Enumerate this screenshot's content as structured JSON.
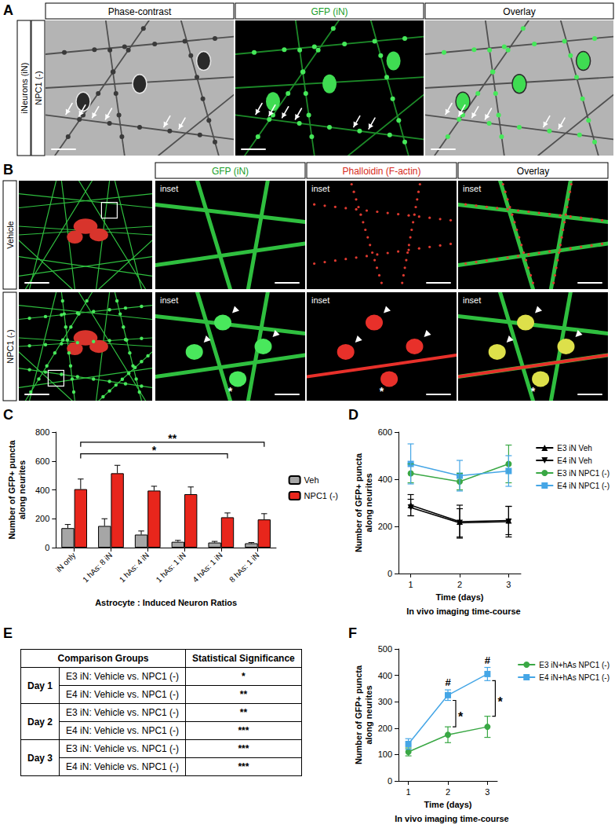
{
  "figure": {
    "panel_A": {
      "letter": "A",
      "columns": [
        {
          "text": "Phase-contrast",
          "color": "#000000"
        },
        {
          "text": "GFP (iN)",
          "color": "#1a9e2a"
        },
        {
          "text": "Overlay",
          "color": "#000000"
        }
      ],
      "row_labels": [
        "iNeurons (iN)",
        "NPC1 (-)"
      ]
    },
    "panel_B": {
      "letter": "B",
      "columns": [
        {
          "text": "GFP (iN)",
          "color": "#1a9e2a"
        },
        {
          "text": "Phalloidin (F-actin)",
          "color": "#d62a20"
        },
        {
          "text": "Overlay",
          "color": "#000000"
        }
      ],
      "rows": [
        "Vehicle",
        "NPC1 (-)"
      ],
      "inset_label": "inset",
      "inset_mark": "*"
    },
    "panel_E": {
      "letter": "E",
      "header": [
        "Comparison Groups",
        "Statistical Significance"
      ],
      "groups": [
        {
          "label": "Day 1",
          "rows": [
            [
              "E3 iN: Vehicle vs. NPC1 (-)",
              "*"
            ],
            [
              "E4 iN: Vehicle vs. NPC1 (-)",
              "**"
            ]
          ]
        },
        {
          "label": "Day 2",
          "rows": [
            [
              "E3 iN: Vehicle vs. NPC1 (-)",
              "**"
            ],
            [
              "E4 iN: Vehicle vs. NPC1 (-)",
              "***"
            ]
          ]
        },
        {
          "label": "Day 3",
          "rows": [
            [
              "E3 iN: Vehicle vs. NPC1 (-)",
              "***"
            ],
            [
              "E4 iN: Vehicle vs. NPC1 (-)",
              "***"
            ]
          ]
        }
      ]
    }
  },
  "chart_data": [
    {
      "panel": "C",
      "type": "bar",
      "xlabel": "Astrocyte : Induced Neuron Ratios",
      "ylabel": "Number of GFP+ puncta along neurites",
      "categories": [
        "iN only",
        "1 hAs: 8 iN",
        "1 hAs: 4 iN",
        "1 hAs: 1 iN",
        "4 hAs: 1 iN",
        "8 hAs: 1 iN"
      ],
      "series": [
        {
          "name": "Veh",
          "color": "#a6a6a6",
          "values": [
            135,
            150,
            90,
            40,
            35,
            30
          ],
          "errors": [
            25,
            50,
            25,
            10,
            8,
            5
          ]
        },
        {
          "name": "NPC1 (-)",
          "color": "#e8261c",
          "values": [
            405,
            515,
            395,
            370,
            210,
            195
          ],
          "errors": [
            70,
            55,
            30,
            50,
            30,
            40
          ]
        }
      ],
      "ylim": [
        0,
        800
      ],
      "yticks": [
        0,
        200,
        400,
        600,
        800
      ],
      "grid": false,
      "legend": "right",
      "annotations": [
        {
          "from": "iN only",
          "to": "4 hAs: 1 iN",
          "label": "*"
        },
        {
          "from": "iN only",
          "to": "8 hAs: 1 iN",
          "label": "**"
        }
      ]
    },
    {
      "panel": "D",
      "type": "line",
      "xlabel": "Time (days)",
      "caption": "In vivo imaging time-course",
      "ylabel": "Number of GFP+ puncta along neurites",
      "x": [
        1,
        2,
        3
      ],
      "series": [
        {
          "name": "E3 iN Veh",
          "color": "#000000",
          "marker": "triangle",
          "values": [
            290,
            220,
            225
          ],
          "errors": [
            45,
            70,
            60
          ]
        },
        {
          "name": "E4 iN Veh",
          "color": "#000000",
          "marker": "triangle-down",
          "values": [
            280,
            215,
            220
          ],
          "errors": [
            35,
            60,
            65
          ]
        },
        {
          "name": "E3 iN NPC1 (-)",
          "color": "#3aa845",
          "marker": "circle",
          "values": [
            425,
            390,
            465
          ],
          "errors": [
            40,
            35,
            80
          ]
        },
        {
          "name": "E4 iN NPC1 (-)",
          "color": "#45a6e6",
          "marker": "square",
          "values": [
            465,
            415,
            435
          ],
          "errors": [
            85,
            65,
            65
          ]
        }
      ],
      "xlim": [
        0.75,
        3.25
      ],
      "xticks": [
        1,
        2,
        3
      ],
      "ylim": [
        0,
        600
      ],
      "yticks": [
        0,
        200,
        400,
        600
      ],
      "grid": false,
      "legend": "right"
    },
    {
      "panel": "F",
      "type": "line",
      "xlabel": "Time (days)",
      "caption": "In vivo imaging time-course",
      "ylabel": "Number of GFP+ puncta along neurites",
      "x": [
        1,
        2,
        3
      ],
      "series": [
        {
          "name": "E3 iN+hAs NPC1 (-)",
          "color": "#3aa845",
          "marker": "circle",
          "values": [
            110,
            175,
            205
          ],
          "errors": [
            15,
            30,
            40
          ]
        },
        {
          "name": "E4 iN+hAs NPC1 (-)",
          "color": "#45a6e6",
          "marker": "square",
          "values": [
            140,
            325,
            405
          ],
          "errors": [
            20,
            20,
            25
          ]
        }
      ],
      "xlim": [
        0.75,
        3.25
      ],
      "xticks": [
        1,
        2,
        3
      ],
      "ylim": [
        0,
        500
      ],
      "yticks": [
        0,
        100,
        200,
        300,
        400,
        500
      ],
      "grid": false,
      "legend": "right",
      "annotations": [
        {
          "x": 2,
          "label": "#",
          "above": "E4 iN+hAs NPC1 (-)"
        },
        {
          "x": 3,
          "label": "#",
          "above": "E4 iN+hAs NPC1 (-)"
        },
        {
          "x": 2,
          "label": "*",
          "between": [
            "E3 iN+hAs NPC1 (-)",
            "E4 iN+hAs NPC1 (-)"
          ]
        },
        {
          "x": 3,
          "label": "*",
          "between": [
            "E3 iN+hAs NPC1 (-)",
            "E4 iN+hAs NPC1 (-)"
          ]
        }
      ]
    }
  ]
}
